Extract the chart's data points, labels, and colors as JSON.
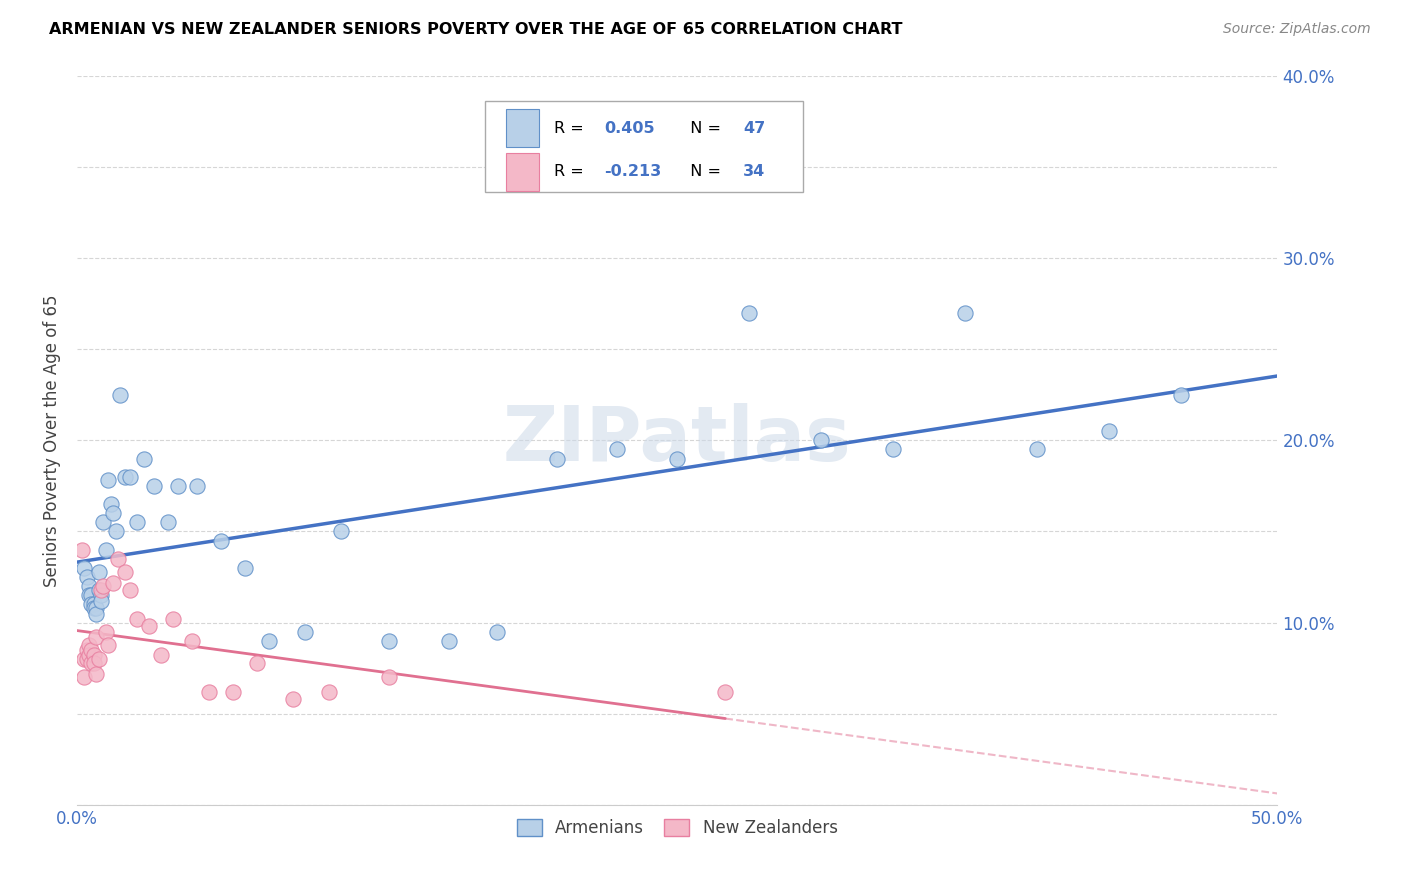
{
  "title": "ARMENIAN VS NEW ZEALANDER SENIORS POVERTY OVER THE AGE OF 65 CORRELATION CHART",
  "source": "Source: ZipAtlas.com",
  "ylabel": "Seniors Poverty Over the Age of 65",
  "xlim": [
    0.0,
    0.5
  ],
  "ylim": [
    0.0,
    0.4
  ],
  "armenian_R": 0.405,
  "armenian_N": 47,
  "nz_R": -0.213,
  "nz_N": 34,
  "armenian_color": "#b8d0e8",
  "nz_color": "#f4b8c8",
  "armenian_edge_color": "#6090c8",
  "nz_edge_color": "#e87fa0",
  "armenian_line_color": "#4472c4",
  "nz_line_color": "#e07090",
  "legend_label_armenian": "Armenians",
  "legend_label_nz": "New Zealanders",
  "watermark": "ZIPatlas",
  "r_value_color": "#4472c4",
  "armenian_x": [
    0.003,
    0.004,
    0.005,
    0.005,
    0.006,
    0.006,
    0.007,
    0.007,
    0.008,
    0.008,
    0.009,
    0.009,
    0.01,
    0.01,
    0.011,
    0.012,
    0.013,
    0.014,
    0.015,
    0.016,
    0.018,
    0.02,
    0.022,
    0.025,
    0.028,
    0.032,
    0.038,
    0.042,
    0.05,
    0.06,
    0.07,
    0.08,
    0.095,
    0.11,
    0.13,
    0.155,
    0.175,
    0.2,
    0.225,
    0.25,
    0.28,
    0.31,
    0.34,
    0.37,
    0.4,
    0.43,
    0.46
  ],
  "armenian_y": [
    0.13,
    0.125,
    0.12,
    0.115,
    0.115,
    0.11,
    0.11,
    0.108,
    0.108,
    0.105,
    0.128,
    0.118,
    0.115,
    0.112,
    0.155,
    0.14,
    0.178,
    0.165,
    0.16,
    0.15,
    0.225,
    0.18,
    0.18,
    0.155,
    0.19,
    0.175,
    0.155,
    0.175,
    0.175,
    0.145,
    0.13,
    0.09,
    0.095,
    0.15,
    0.09,
    0.09,
    0.095,
    0.19,
    0.195,
    0.19,
    0.27,
    0.2,
    0.195,
    0.27,
    0.195,
    0.205,
    0.225
  ],
  "nz_x": [
    0.002,
    0.003,
    0.003,
    0.004,
    0.004,
    0.005,
    0.005,
    0.006,
    0.006,
    0.007,
    0.007,
    0.008,
    0.008,
    0.009,
    0.01,
    0.011,
    0.012,
    0.013,
    0.015,
    0.017,
    0.02,
    0.022,
    0.025,
    0.03,
    0.035,
    0.04,
    0.048,
    0.055,
    0.065,
    0.075,
    0.09,
    0.105,
    0.13,
    0.27
  ],
  "nz_y": [
    0.14,
    0.07,
    0.08,
    0.085,
    0.08,
    0.088,
    0.082,
    0.085,
    0.078,
    0.082,
    0.078,
    0.092,
    0.072,
    0.08,
    0.118,
    0.12,
    0.095,
    0.088,
    0.122,
    0.135,
    0.128,
    0.118,
    0.102,
    0.098,
    0.082,
    0.102,
    0.09,
    0.062,
    0.062,
    0.078,
    0.058,
    0.062,
    0.07,
    0.062
  ]
}
